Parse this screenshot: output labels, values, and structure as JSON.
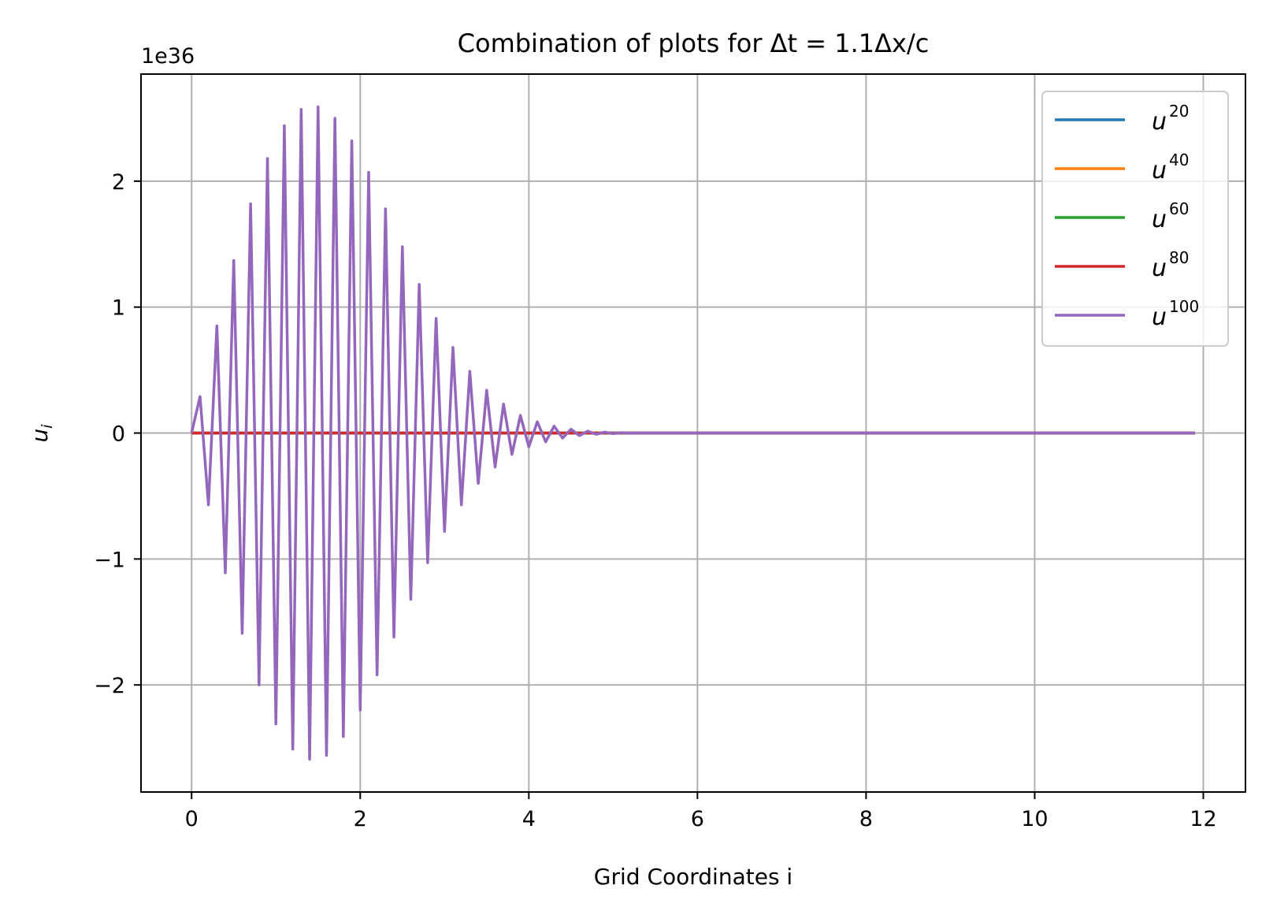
{
  "chart_data": {
    "type": "line",
    "title": "Combination of plots for Δt = 1.1Δx/c",
    "xlabel": "Grid Coordinates i",
    "ylabel": "u_i",
    "ylabel_base": "u",
    "ylabel_sub": "i",
    "offset_text": "1e36",
    "xlim": [
      -0.6,
      12.5
    ],
    "ylim": [
      -2.85,
      2.85
    ],
    "xticks": [
      0,
      2,
      4,
      6,
      8,
      10,
      12
    ],
    "yticks": [
      -2,
      -1,
      0,
      1,
      2
    ],
    "xtick_labels": [
      "0",
      "2",
      "4",
      "6",
      "8",
      "10",
      "12"
    ],
    "ytick_labels": [
      "−2",
      "−1",
      "0",
      "1",
      "2"
    ],
    "grid": true,
    "legend_position": "top-right",
    "x_start": 0,
    "x_step": 0.1,
    "x_end": 11.9,
    "series": [
      {
        "name": "u^20",
        "label_base": "u",
        "label_sup": "20",
        "color": "#1f77b4",
        "values": [
          0,
          0
        ]
      },
      {
        "name": "u^40",
        "label_base": "u",
        "label_sup": "40",
        "color": "#ff7f0e",
        "values": [
          0,
          0
        ]
      },
      {
        "name": "u^60",
        "label_base": "u",
        "label_sup": "60",
        "color": "#2ca02c",
        "values": [
          0,
          0
        ]
      },
      {
        "name": "u^80",
        "label_base": "u",
        "label_sup": "80",
        "color": "#d62728",
        "values": [
          0,
          0
        ]
      },
      {
        "name": "u^100",
        "label_base": "u",
        "label_sup": "100",
        "color": "#9467bd",
        "values": [
          0,
          0.29,
          -0.57,
          0.85,
          -1.11,
          1.37,
          -1.59,
          1.82,
          -2.0,
          2.18,
          -2.31,
          2.44,
          -2.51,
          2.57,
          -2.59,
          2.59,
          -2.56,
          2.5,
          -2.41,
          2.32,
          -2.2,
          2.07,
          -1.92,
          1.78,
          -1.62,
          1.48,
          -1.32,
          1.18,
          -1.03,
          0.91,
          -0.78,
          0.68,
          -0.57,
          0.49,
          -0.4,
          0.34,
          -0.27,
          0.23,
          -0.17,
          0.14,
          -0.11,
          0.09,
          -0.07,
          0.055,
          -0.04,
          0.03,
          -0.02,
          0.015,
          -0.01,
          0.007,
          -0.005,
          0.003,
          -0.002,
          0.001,
          0
        ]
      }
    ]
  }
}
